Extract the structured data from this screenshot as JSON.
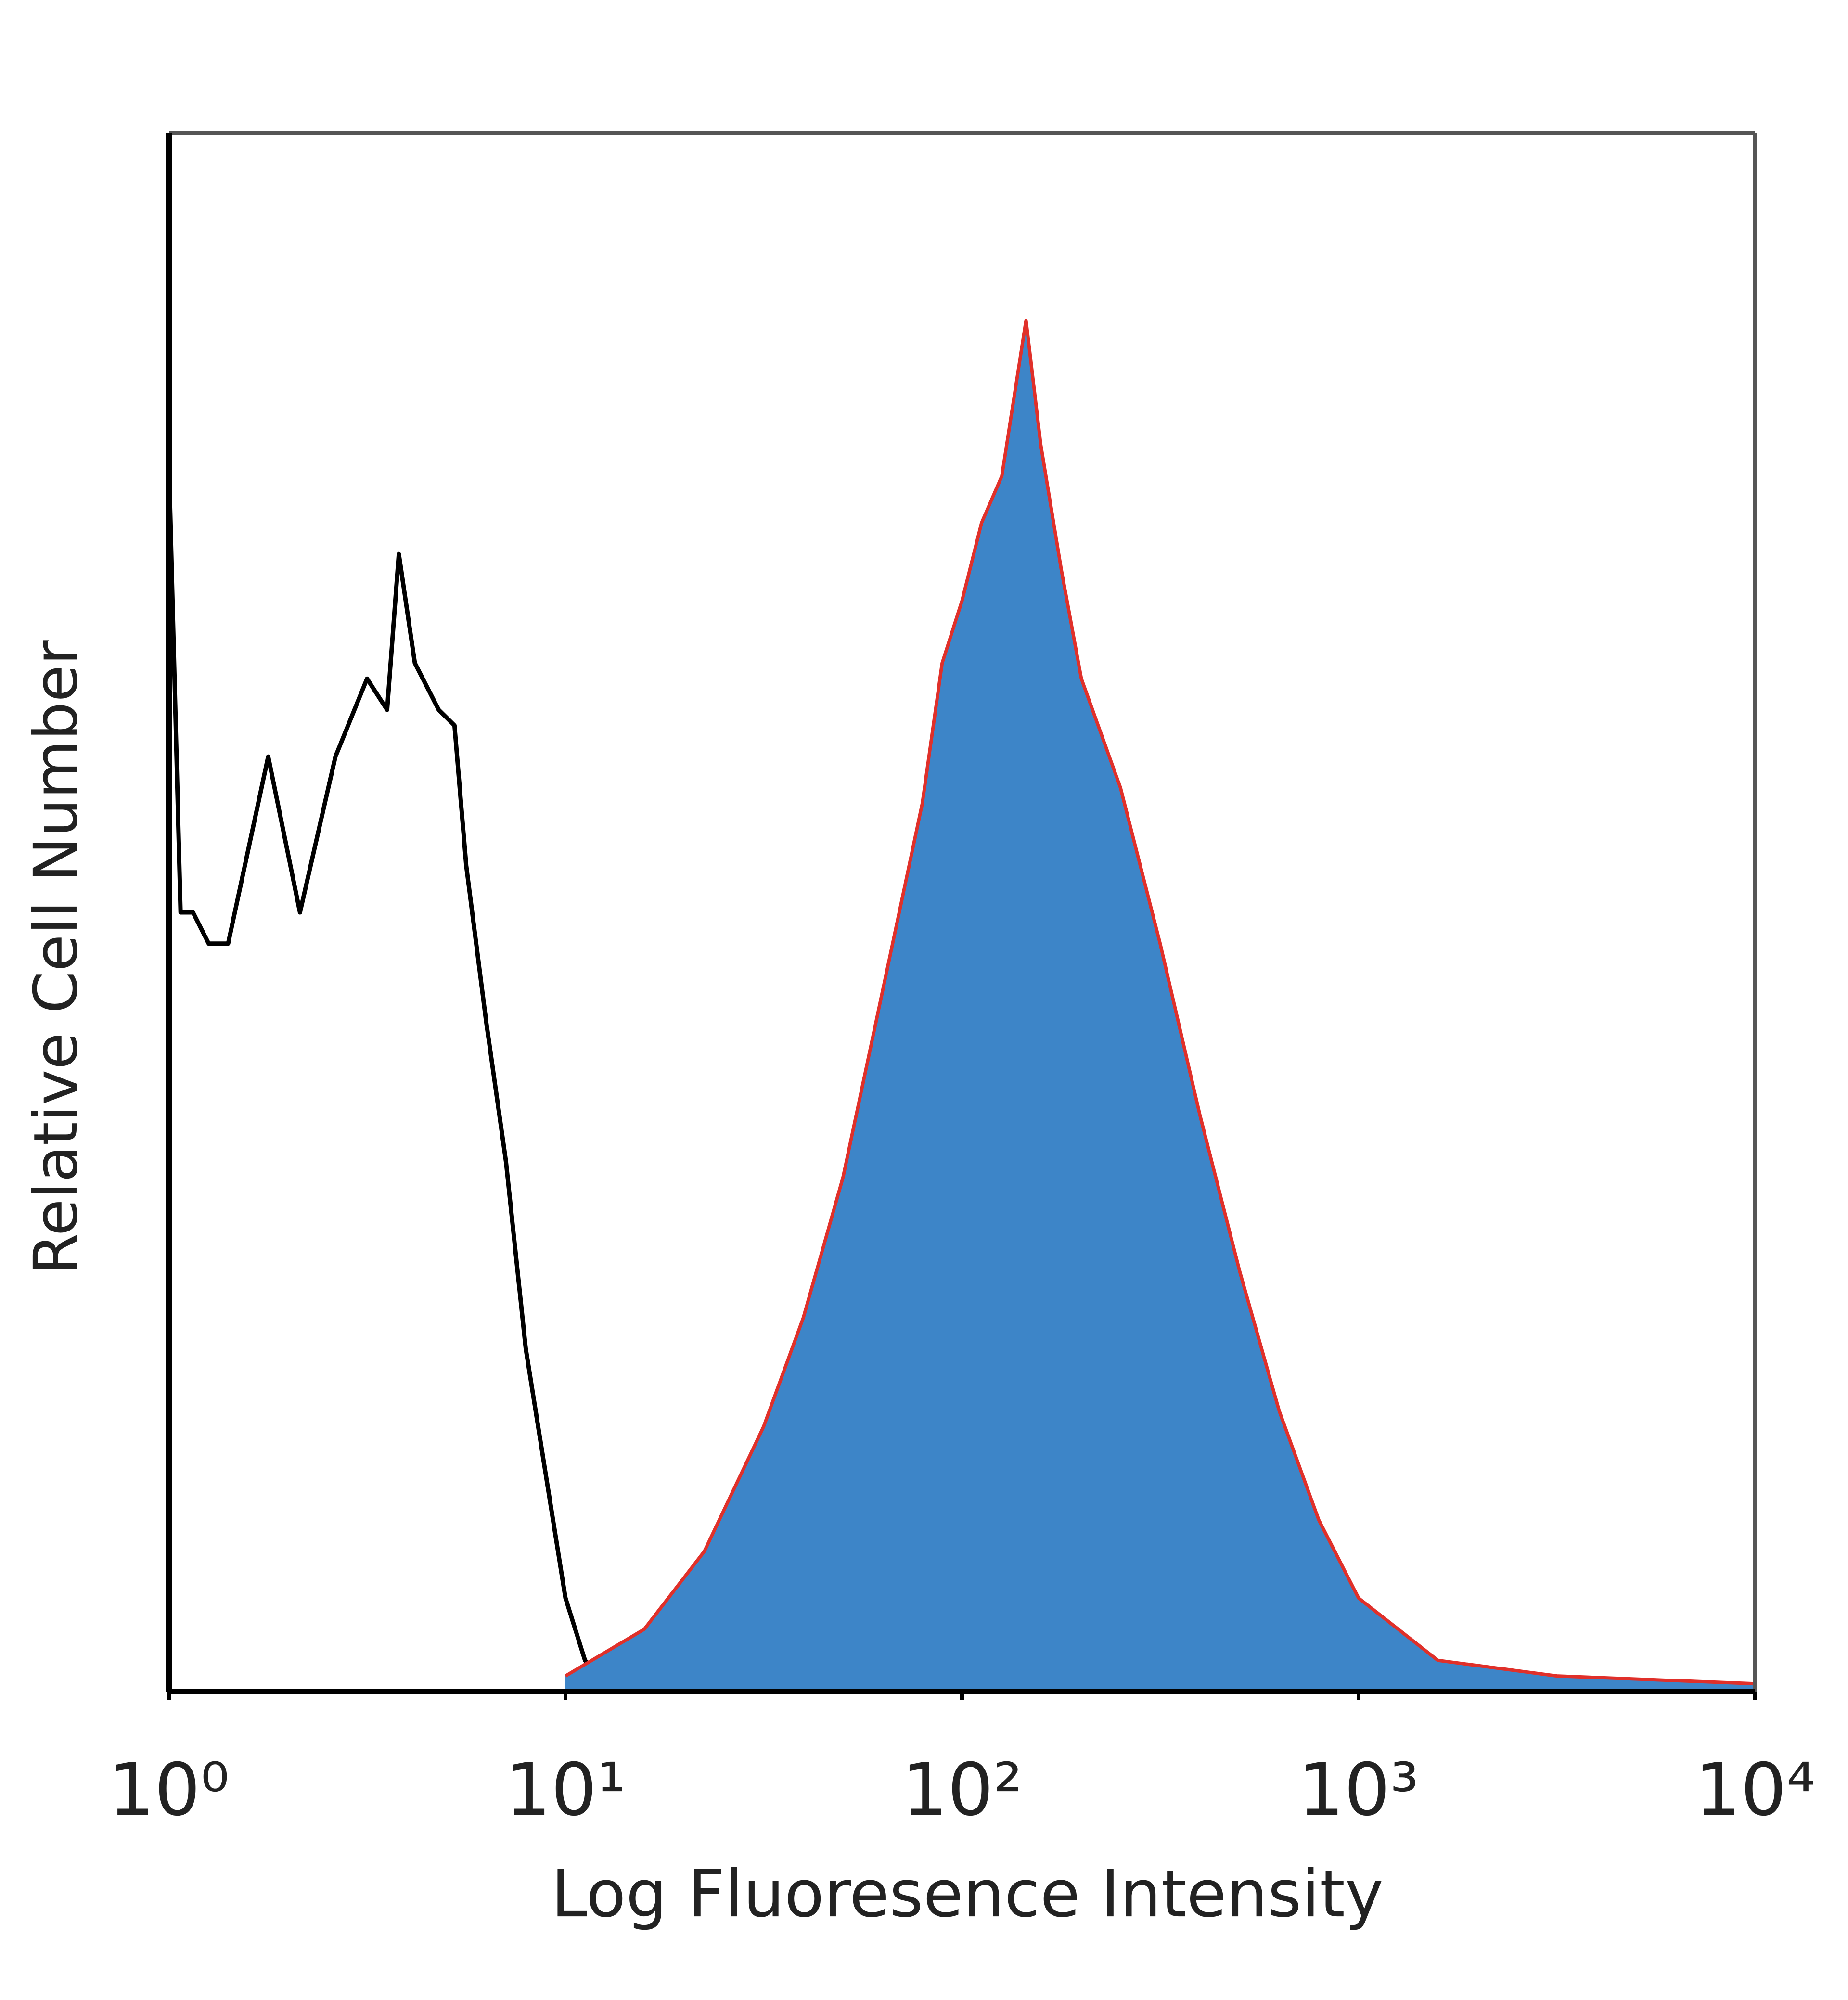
{
  "chart_data": {
    "type": "histogram-overlay",
    "xlabel": "Log Fluoresence Intensity",
    "ylabel": "Relative Cell Number",
    "xscale": "log",
    "xlim": [
      1,
      10000
    ],
    "xticks": [
      {
        "value": 1,
        "label": "10⁰"
      },
      {
        "value": 10,
        "label": "10¹"
      },
      {
        "value": 100,
        "label": "10²"
      },
      {
        "value": 1000,
        "label": "10³"
      },
      {
        "value": 10000,
        "label": "10⁴"
      }
    ],
    "ylim": [
      0,
      100
    ],
    "grid": false,
    "series": [
      {
        "style": "line",
        "color": "#000000",
        "x": [
          1,
          1.07,
          1.15,
          1.26,
          1.41,
          1.78,
          2.14,
          2.63,
          3.16,
          3.55,
          3.8,
          4.17,
          4.79,
          5.25,
          5.62,
          6.31,
          7.08,
          7.94,
          8.91,
          10,
          11.2,
          12.6,
          14.1,
          20
        ],
        "values": [
          79,
          50,
          50,
          48,
          48,
          60,
          50,
          60,
          65,
          63,
          73,
          66,
          63,
          62,
          53,
          43,
          34,
          22,
          14,
          6,
          2,
          0.5,
          0,
          0
        ]
      },
      {
        "style": "filled",
        "color": "#3d85c8",
        "edge_color": "#e0302a",
        "x": [
          10,
          15.8,
          22.4,
          31.6,
          39.8,
          50.1,
          63.1,
          79.4,
          89.1,
          100,
          112,
          126,
          145,
          158,
          178,
          200,
          251,
          316,
          398,
          501,
          631,
          794,
          1000,
          1585,
          3162,
          10000
        ],
        "values": [
          1,
          4,
          9,
          17,
          24,
          33,
          45,
          57,
          66,
          70,
          75,
          78,
          88,
          80,
          72,
          65,
          58,
          48,
          37,
          27,
          18,
          11,
          6,
          2,
          1,
          0.5
        ]
      }
    ]
  }
}
